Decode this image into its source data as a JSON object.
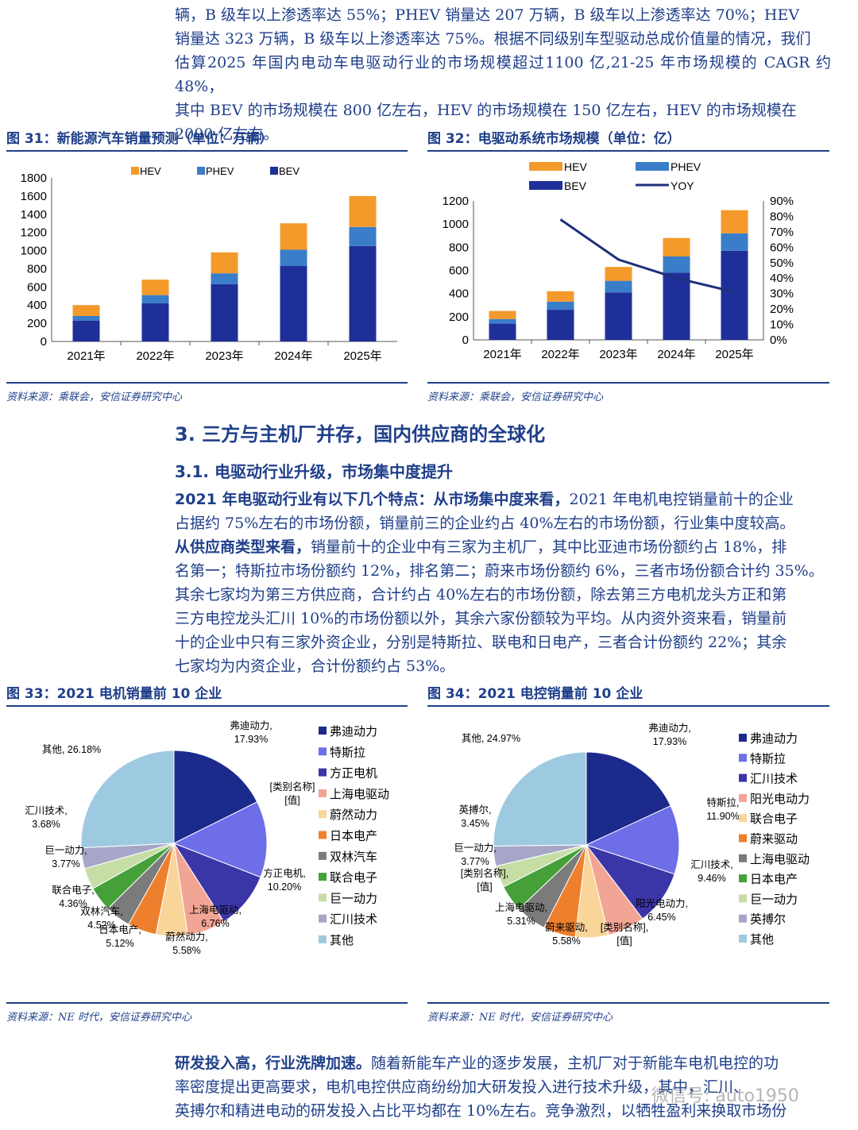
{
  "para1": {
    "lines": [
      "辆，B 级车以上渗透率达 55%；PHEV 销量达 207 万辆，B 级车以上渗透率达 70%；HEV",
      "销量达 323 万辆，B 级车以上渗透率达 75%。根据不同级别车型驱动总成价值量的情况，我们",
      "估算2025 年国内电动车电驱动行业的市场规模超过1100 亿,21-25 年市场规模的 CAGR 约48%，",
      "其中 BEV 的市场规模在 800 亿左右，HEV 的市场规模在 150 亿左右，HEV 的市场规模在",
      "2000 亿左右。"
    ]
  },
  "fig31": {
    "title": "图 31：新能源汽车销量预测（单位：万辆）",
    "source": "资料来源：乘联会，安信证券研究中心"
  },
  "fig32": {
    "title": "图 32：电驱动系统市场规模（单位：亿）",
    "source": "资料来源：乘联会，安信证券研究中心"
  },
  "section": {
    "h2": "3. 三方与主机厂并存，国内供应商的全球化",
    "h3": "3.1. 电驱动行业升级，市场集中度提升"
  },
  "para2": {
    "lines": [
      [
        "2021 年电驱动行业有以下几个特点：从市场集中度来看，",
        "2021 年电机电控销量前十的企业"
      ],
      [
        "",
        "占据约 75%左右的市场份额，销量前三的企业约占 40%左右的市场份额，行业集中度较高。"
      ],
      [
        "从供应商类型来看，",
        "销量前十的企业中有三家为主机厂，其中比亚迪市场份额约占 18%，排"
      ],
      [
        "",
        "名第一；特斯拉市场份额约 12%，排名第二；蔚来市场份额约 6%，三者市场份额合计约 35%。"
      ],
      [
        "",
        "其余七家均为第三方供应商，合计约占 40%左右的市场份额，除去第三方电机龙头方正和第"
      ],
      [
        "",
        "三方电控龙头汇川 10%的市场份额以外，其余六家份额较为平均。从内资外资来看，销量前"
      ],
      [
        "",
        "十的企业中只有三家外资企业，分别是特斯拉、联电和日电产，三者合计份额约 22%；其余"
      ],
      [
        "",
        "七家均为内资企业，合计份额约占 53%。"
      ]
    ]
  },
  "fig33": {
    "title": "图 33：2021 电机销量前 10 企业",
    "source": "资料来源：NE 时代，安信证券研究中心"
  },
  "fig34": {
    "title": "图 34：2021 电控销量前 10 企业",
    "source": "资料来源：NE 时代，安信证券研究中心"
  },
  "para3": {
    "lines": [
      [
        "研发投入高，行业洗牌加速。",
        "随着新能车产业的逐步发展，主机厂对于新能车电机电控的功"
      ],
      [
        "",
        "率密度提出更高要求，电机电控供应商纷纷加大研发投入进行技术升级，其中，汇川、"
      ],
      [
        "",
        "英搏尔和精进电动的研发投入占比平均都在 10%左右。竞争激烈，以牺牲盈利来换取市场份"
      ]
    ]
  },
  "watermark": "微信号: auto1950",
  "chart_data": [
    {
      "type": "bar",
      "stacked": true,
      "categories": [
        "2021年",
        "2022年",
        "2023年",
        "2024年",
        "2025年"
      ],
      "series": [
        {
          "name": "BEV",
          "values": [
            230,
            420,
            630,
            830,
            1050
          ],
          "color": "#1f2f9a"
        },
        {
          "name": "PHEV",
          "values": [
            50,
            90,
            120,
            180,
            210
          ],
          "color": "#3a7dc9"
        },
        {
          "name": "HEV",
          "values": [
            120,
            170,
            230,
            290,
            340
          ],
          "color": "#f39a2b"
        }
      ],
      "legend_order": [
        "HEV",
        "PHEV",
        "BEV"
      ],
      "ylim": [
        0,
        1800
      ],
      "yticks": [
        0,
        200,
        400,
        600,
        800,
        1000,
        1200,
        1400,
        1600,
        1800
      ],
      "legend": "top"
    },
    {
      "type": "bar",
      "stacked": true,
      "categories": [
        "2021年",
        "2022年",
        "2023年",
        "2024年",
        "2025年"
      ],
      "series": [
        {
          "name": "BEV",
          "values": [
            140,
            260,
            410,
            580,
            770
          ],
          "color": "#1f2f9a"
        },
        {
          "name": "PHEV",
          "values": [
            40,
            70,
            100,
            140,
            150
          ],
          "color": "#3a7dc9"
        },
        {
          "name": "HEV",
          "values": [
            70,
            90,
            120,
            160,
            200
          ],
          "color": "#f39a2b"
        }
      ],
      "line": {
        "name": "YOY",
        "values": [
          null,
          0.78,
          0.52,
          0.4,
          0.31
        ],
        "color": "#1f2f7a"
      },
      "ylim": [
        0,
        1200
      ],
      "yticks": [
        0,
        200,
        400,
        600,
        800,
        1000,
        1200
      ],
      "y2lim": [
        0,
        0.9
      ],
      "y2ticks": [
        "0%",
        "10%",
        "20%",
        "30%",
        "40%",
        "50%",
        "60%",
        "70%",
        "80%",
        "90%"
      ],
      "legend": "top"
    },
    {
      "type": "pie",
      "slices": [
        {
          "name": "弗迪动力",
          "value": 17.93,
          "label": "弗迪动力,\n17.93%",
          "color": "#1c2a8c"
        },
        {
          "name": "特斯拉",
          "value": 13.5,
          "label": "[类别名称]\n[值]",
          "color": "#6d6ee8"
        },
        {
          "name": "方正电机",
          "value": 10.2,
          "label": "方正电机,\n10.20%",
          "color": "#3b36a8"
        },
        {
          "name": "上海电驱动",
          "value": 6.76,
          "label": "上海电驱动,\n6.76%",
          "color": "#f2a594"
        },
        {
          "name": "蔚然动力",
          "value": 5.58,
          "label": "蔚然动力,\n5.58%",
          "color": "#fad59a"
        },
        {
          "name": "日本电产",
          "value": 5.12,
          "label": "日本电产,\n5.12%",
          "color": "#ee7f2d"
        },
        {
          "name": "双林汽车",
          "value": 4.52,
          "label": "双林汽车,\n4.52%",
          "color": "#7b7b7b"
        },
        {
          "name": "联合电子",
          "value": 4.36,
          "label": "联合电子,\n4.36%",
          "color": "#45a03a"
        },
        {
          "name": "巨一动力",
          "value": 3.77,
          "label": "巨一动力,\n3.77%",
          "color": "#c6dea5"
        },
        {
          "name": "汇川技术",
          "value": 3.68,
          "label": "汇川技术,\n3.68%",
          "color": "#a6a6c8"
        },
        {
          "name": "其他",
          "value": 26.18,
          "label": "其他, 26.18%",
          "color": "#9ecae1"
        }
      ]
    },
    {
      "type": "pie",
      "slices": [
        {
          "name": "弗迪动力",
          "value": 17.93,
          "label": "弗迪动力,\n17.93%",
          "color": "#1c2a8c"
        },
        {
          "name": "特斯拉",
          "value": 11.9,
          "label": "特斯拉,\n11.90%",
          "color": "#6d6ee8"
        },
        {
          "name": "汇川技术",
          "value": 9.46,
          "label": "汇川技术,\n9.46%",
          "color": "#3b36a8"
        },
        {
          "name": "阳光电动力",
          "value": 6.45,
          "label": "阳光电动力,\n6.45%",
          "color": "#f2a594"
        },
        {
          "name": "联合电子",
          "value": 5.7,
          "label": "[类别名称],\n[值]",
          "color": "#fad59a"
        },
        {
          "name": "蔚来驱动",
          "value": 5.58,
          "label": "蔚来驱动,\n5.58%",
          "color": "#ee7f2d"
        },
        {
          "name": "上海电驱动",
          "value": 5.31,
          "label": "上海电驱动,\n5.31%",
          "color": "#7b7b7b"
        },
        {
          "name": "日本电产",
          "value": 4.6,
          "label": "[类别名称],\n[值]",
          "color": "#45a03a"
        },
        {
          "name": "巨一动力",
          "value": 3.77,
          "label": "巨一动力,\n3.77%",
          "color": "#c6dea5"
        },
        {
          "name": "英搏尔",
          "value": 3.45,
          "label": "英搏尔,\n3.45%",
          "color": "#a6a6c8"
        },
        {
          "name": "其他",
          "value": 24.97,
          "label": "其他, 24.97%",
          "color": "#9ecae1"
        }
      ]
    }
  ]
}
